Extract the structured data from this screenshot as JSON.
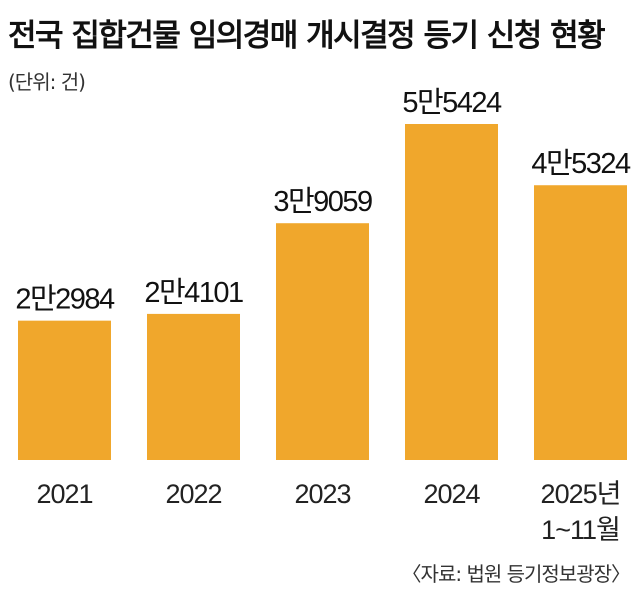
{
  "chart_data": {
    "type": "bar",
    "title": "전국 집합건물 임의경매 개시결정 등기 신청 현황",
    "unit": "(단위: 건)",
    "categories": [
      "2021",
      "2022",
      "2023",
      "2024",
      "2025년 1~11월"
    ],
    "category_lines": [
      [
        "2021"
      ],
      [
        "2022"
      ],
      [
        "2023"
      ],
      [
        "2024"
      ],
      [
        "2025년",
        "1~11월"
      ]
    ],
    "values": [
      22984,
      24101,
      39059,
      55424,
      45324
    ],
    "value_labels": [
      "2만2984",
      "2만4101",
      "3만9059",
      "5만5424",
      "4만5324"
    ],
    "ylim": [
      0,
      55424
    ],
    "bar_color": "#f0a72c",
    "source": "〈자료: 법원 등기정보광장〉",
    "grid": false,
    "legend": "none"
  }
}
